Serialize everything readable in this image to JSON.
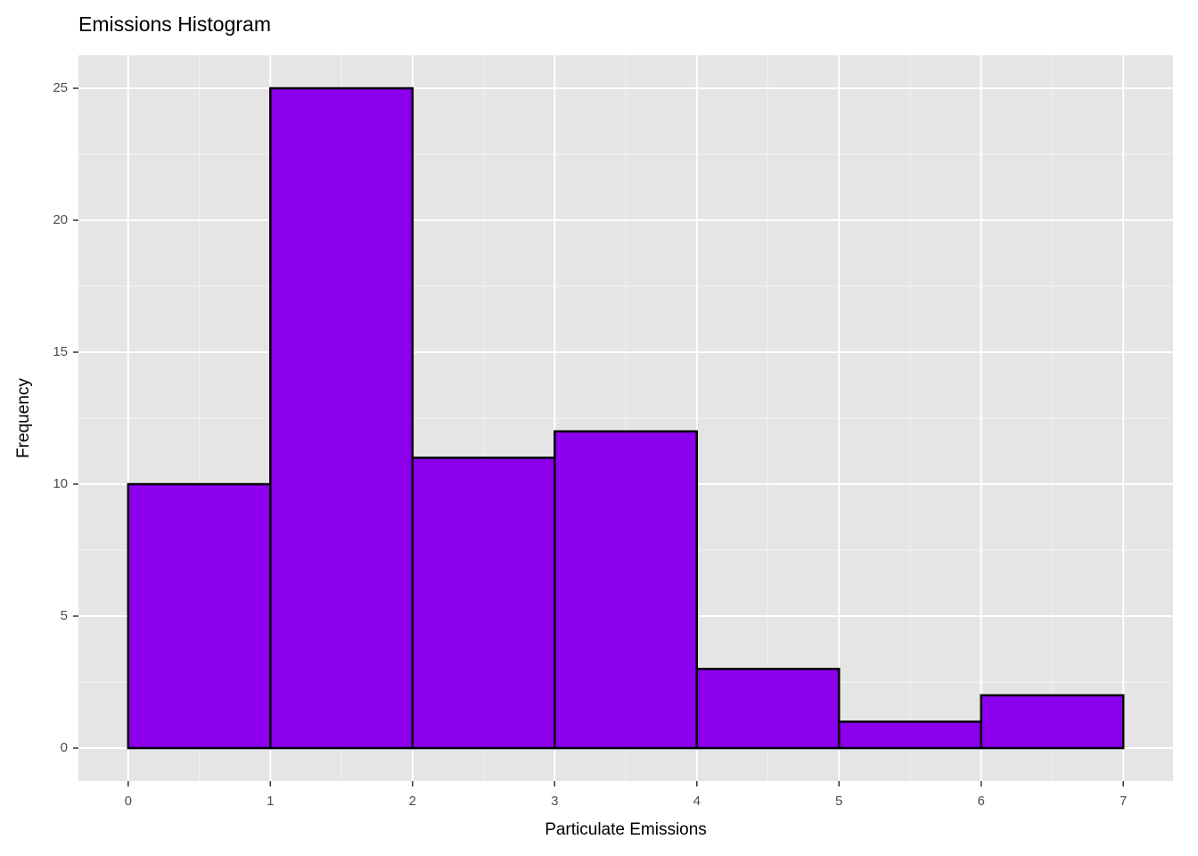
{
  "chart_data": {
    "type": "histogram",
    "title": "Emissions Histogram",
    "x_label": "Particulate Emissions",
    "y_label": "Frequency",
    "bins": [
      0,
      1,
      2,
      3,
      4,
      5,
      6,
      7
    ],
    "counts": [
      10,
      25,
      11,
      12,
      3,
      1,
      2
    ],
    "color": "#8c00ee",
    "edge_color": "#000000",
    "xlim": [
      -0.35,
      7.35
    ],
    "ylim": [
      -1.25,
      26.25
    ],
    "xticks": [
      0,
      1,
      2,
      3,
      4,
      5,
      6,
      7
    ],
    "yticks": [
      0,
      5,
      10,
      15,
      20,
      25
    ],
    "grid": true
  }
}
